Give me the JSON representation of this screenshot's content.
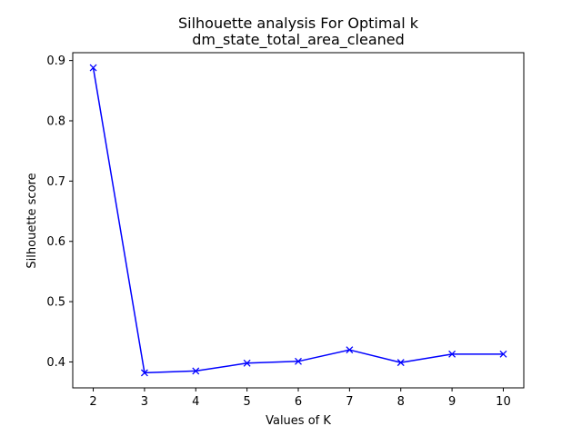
{
  "chart_data": {
    "type": "line",
    "title": "Silhouette analysis For Optimal k",
    "subtitle": "dm_state_total_area_cleaned",
    "xlabel": "Values of K",
    "ylabel": "Silhouette score",
    "x": [
      2,
      3,
      4,
      5,
      6,
      7,
      8,
      9,
      10
    ],
    "series": [
      {
        "values": [
          0.888,
          0.382,
          0.385,
          0.398,
          0.401,
          0.42,
          0.399,
          0.413,
          0.413
        ]
      }
    ],
    "xlim": [
      1.6,
      10.4
    ],
    "ylim": [
      0.357,
      0.913
    ],
    "xticks": [
      "2",
      "3",
      "4",
      "5",
      "6",
      "7",
      "8",
      "9",
      "10"
    ],
    "yticks": [
      "0.4",
      "0.5",
      "0.6",
      "0.7",
      "0.8",
      "0.9"
    ],
    "line_color": "#0000ff",
    "marker": "x",
    "grid": false
  }
}
